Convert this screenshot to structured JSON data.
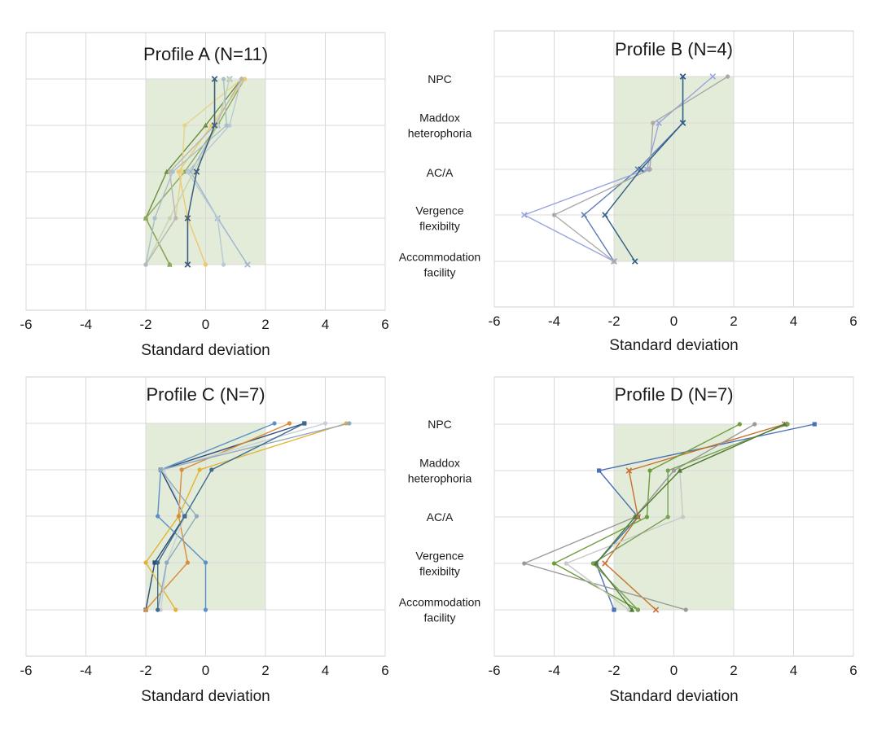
{
  "categories": [
    "NPC",
    "Maddox heterophoria",
    "AC/A",
    "Vergence flexibilty",
    "Accommodation facility"
  ],
  "category_lines": [
    [
      "NPC"
    ],
    [
      "Maddox",
      "heterophoria"
    ],
    [
      "AC/A"
    ],
    [
      "Vergence",
      "flexibilty"
    ],
    [
      "Accommodation",
      "facility"
    ]
  ],
  "colors": {
    "band": "#e2ecd8",
    "grid": "#d9d9d9",
    "frame": "#cfcfcf",
    "text": "#1a1a1a"
  },
  "chart_data": [
    {
      "type": "line",
      "title": "Profile A (N=11)",
      "xlabel": "Standard deviation",
      "xlim": [
        -6,
        6
      ],
      "xticks": [
        "-6",
        "-4",
        "-2",
        "0",
        "2",
        "4",
        "6"
      ],
      "band": [
        -2,
        2
      ],
      "categories": [
        "NPC",
        "Maddox heterophoria",
        "AC/A",
        "Vergence flexibilty",
        "Accommodation facility"
      ],
      "series": [
        {
          "color": "#5b7db3",
          "marker": "x",
          "values": [
            0.3,
            0.3,
            -0.3,
            -0.6,
            -0.6
          ]
        },
        {
          "color": "#9fb3cf",
          "marker": "x",
          "values": [
            0.8,
            0.4,
            -0.5,
            0.4,
            1.4
          ]
        },
        {
          "color": "#6b8f3e",
          "marker": "tri",
          "values": [
            1.2,
            0.0,
            -1.3,
            -2.0,
            -1.2
          ]
        },
        {
          "color": "#8daa5b",
          "marker": "dot",
          "values": [
            1.3,
            0.4,
            -0.7,
            -2.0,
            -1.2
          ]
        },
        {
          "color": "#e8d28a",
          "marker": "dot",
          "values": [
            1.2,
            -0.7,
            -0.8,
            -1.0,
            -2.0
          ]
        },
        {
          "color": "#eec86a",
          "marker": "dot",
          "values": [
            1.3,
            0.2,
            -0.9,
            -0.6,
            0.0
          ]
        },
        {
          "color": "#b9c8d7",
          "marker": "dot",
          "values": [
            1.2,
            0.8,
            -0.6,
            0.4,
            0.6
          ]
        },
        {
          "color": "#c5d3b5",
          "marker": "dot",
          "values": [
            0.8,
            0.4,
            -0.4,
            -1.2,
            -2.0
          ]
        },
        {
          "color": "#a8bfca",
          "marker": "dot",
          "values": [
            0.6,
            0.7,
            -1.1,
            -1.7,
            -2.0
          ]
        },
        {
          "color": "#b8b8b8",
          "marker": "dot",
          "values": [
            1.2,
            0.3,
            -1.2,
            -1.0,
            -2.0
          ]
        },
        {
          "color": "#3e5d7a",
          "marker": "x",
          "values": [
            0.3,
            0.3,
            -0.3,
            -0.6,
            -0.6
          ]
        }
      ]
    },
    {
      "type": "line",
      "title": "Profile B (N=4)",
      "xlabel": "Standard deviation",
      "xlim": [
        -6,
        6
      ],
      "xticks": [
        "-6",
        "-4",
        "-2",
        "0",
        "2",
        "4",
        "6"
      ],
      "band": [
        -2,
        2
      ],
      "categories": [
        "NPC",
        "Maddox heterophoria",
        "AC/A",
        "Vergence flexibilty",
        "Accommodation facility"
      ],
      "series": [
        {
          "color": "#5b7db3",
          "marker": "x",
          "values": [
            0.3,
            0.3,
            -1.2,
            -3.0,
            -2.0
          ]
        },
        {
          "color": "#9aa4dd",
          "marker": "x",
          "values": [
            1.3,
            -0.5,
            -0.9,
            -5.0,
            -2.0
          ]
        },
        {
          "color": "#a9a9a9",
          "marker": "dot",
          "values": [
            1.8,
            -0.7,
            -0.8,
            -4.0,
            -2.0
          ]
        },
        {
          "color": "#2f5d86",
          "marker": "x",
          "values": [
            0.3,
            0.3,
            -1.1,
            -2.3,
            -1.3
          ]
        }
      ]
    },
    {
      "type": "line",
      "title": "Profile C (N=7)",
      "xlabel": "Standard deviation",
      "xlim": [
        -6,
        6
      ],
      "xticks": [
        "-6",
        "-4",
        "-2",
        "0",
        "2",
        "4",
        "6"
      ],
      "band": [
        -2,
        2
      ],
      "categories": [
        "NPC",
        "Maddox heterophoria",
        "AC/A",
        "Vergence flexibilty",
        "Accommodation facility"
      ],
      "series": [
        {
          "color": "#2b4b7a",
          "marker": "sq",
          "values": [
            3.3,
            -1.5,
            -0.7,
            -1.7,
            -2.0
          ]
        },
        {
          "color": "#5b8fc7",
          "marker": "dot",
          "values": [
            2.3,
            -1.5,
            -1.6,
            0.0,
            0.0
          ]
        },
        {
          "color": "#e3b230",
          "marker": "dot",
          "values": [
            4.7,
            -0.2,
            -0.9,
            -2.0,
            -1.0
          ]
        },
        {
          "color": "#d98c3a",
          "marker": "dot",
          "values": [
            2.8,
            -0.8,
            -0.9,
            -0.6,
            -2.0
          ]
        },
        {
          "color": "#c9cfd6",
          "marker": "dot",
          "values": [
            4.0,
            -1.4,
            -0.7,
            -1.3,
            -1.5
          ]
        },
        {
          "color": "#8fa8be",
          "marker": "dot",
          "values": [
            4.8,
            -1.5,
            -0.3,
            -1.3,
            -1.6
          ]
        },
        {
          "color": "#3d6a8f",
          "marker": "dot",
          "values": [
            3.3,
            0.2,
            -0.7,
            -1.6,
            -1.6
          ]
        }
      ]
    },
    {
      "type": "line",
      "title": "Profile D (N=7)",
      "xlabel": "Standard deviation",
      "xlim": [
        -6,
        6
      ],
      "xticks": [
        "-6",
        "-4",
        "-2",
        "0",
        "2",
        "4",
        "6"
      ],
      "band": [
        -2,
        2
      ],
      "categories": [
        "NPC",
        "Maddox heterophoria",
        "AC/A",
        "Vergence flexibilty",
        "Accommodation facility"
      ],
      "series": [
        {
          "color": "#4a6fb5",
          "marker": "sq",
          "values": [
            4.7,
            -2.5,
            -1.2,
            -2.6,
            -2.0
          ]
        },
        {
          "color": "#c8702e",
          "marker": "x",
          "values": [
            3.7,
            -1.5,
            -1.2,
            -2.3,
            -0.6
          ]
        },
        {
          "color": "#6b9e3a",
          "marker": "dot",
          "values": [
            2.2,
            -0.8,
            -0.9,
            -4.0,
            -1.2
          ]
        },
        {
          "color": "#9a9a9a",
          "marker": "dot",
          "values": [
            2.7,
            0.0,
            -1.3,
            -5.0,
            0.4
          ]
        },
        {
          "color": "#c8c8c8",
          "marker": "dot",
          "values": [
            3.7,
            0.2,
            0.3,
            -3.6,
            -1.5
          ]
        },
        {
          "color": "#7aa055",
          "marker": "dot",
          "values": [
            3.8,
            -0.2,
            -0.2,
            -2.7,
            -1.2
          ]
        },
        {
          "color": "#4f7a34",
          "marker": "tri",
          "values": [
            3.7,
            0.2,
            -1.3,
            -2.6,
            -1.4
          ]
        }
      ]
    }
  ]
}
